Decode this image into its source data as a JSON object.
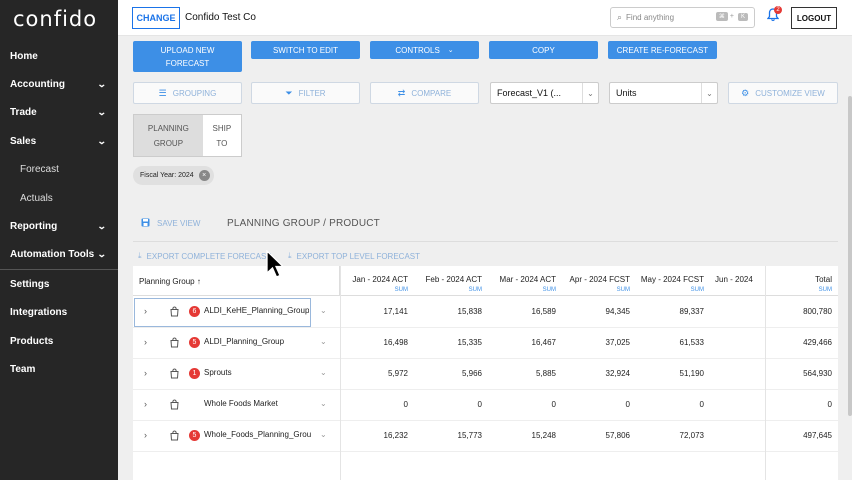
{
  "brand": {
    "logo": "confido"
  },
  "sidebar": {
    "items": [
      {
        "label": "Home",
        "chevron": false,
        "sub": false
      },
      {
        "label": "Accounting",
        "chevron": true,
        "sub": false
      },
      {
        "label": "Trade",
        "chevron": true,
        "sub": false
      },
      {
        "label": "Sales",
        "chevron": true,
        "sub": false
      },
      {
        "label": "Forecast",
        "chevron": false,
        "sub": true
      },
      {
        "label": "Actuals",
        "chevron": false,
        "sub": true
      },
      {
        "label": "Reporting",
        "chevron": true,
        "sub": false
      },
      {
        "label": "Automation Tools",
        "chevron": true,
        "sub": false
      },
      {
        "label": "Settings",
        "chevron": false,
        "sub": false
      },
      {
        "label": "Integrations",
        "chevron": false,
        "sub": false
      },
      {
        "label": "Products",
        "chevron": false,
        "sub": false
      },
      {
        "label": "Team",
        "chevron": false,
        "sub": false
      }
    ]
  },
  "header": {
    "change_label": "CHANGE",
    "company": "Confido Test Co",
    "search_placeholder": "Find anything",
    "shortcut_key1": "⌘",
    "shortcut_plus": "+",
    "shortcut_key2": "K",
    "notification_count": "2",
    "logout_label": "LOGOUT"
  },
  "toolbar": {
    "upload_line1": "UPLOAD NEW",
    "upload_line2": "FORECAST",
    "switch_edit": "SWITCH TO EDIT",
    "controls": "CONTROLS",
    "copy": "COPY",
    "create_reforecast": "CREATE RE-FORECAST",
    "grouping": "GROUPING",
    "filter": "FILTER",
    "compare": "COMPARE",
    "forecast_select": "Forecast_V1 (...",
    "units_select": "Units",
    "customize_view": "CUSTOMIZE VIEW"
  },
  "group_toggle": {
    "option1_line1": "PLANNING",
    "option1_line2": "GROUP",
    "option2_line1": "SHIP",
    "option2_line2": "TO"
  },
  "filter_chip": "Fiscal Year: 2024",
  "save_view": "SAVE VIEW",
  "breadcrumb": "PLANNING GROUP / PRODUCT",
  "export_complete": "EXPORT COMPLETE FORECAST",
  "export_top": "EXPORT TOP LEVEL FORECAST",
  "table": {
    "first_header": "Planning Group ↑",
    "columns": [
      {
        "title": "Jan - 2024 ACT",
        "sub": "SUM"
      },
      {
        "title": "Feb - 2024 ACT",
        "sub": "SUM"
      },
      {
        "title": "Mar - 2024 ACT",
        "sub": "SUM"
      },
      {
        "title": "Apr - 2024 FCST",
        "sub": "SUM"
      },
      {
        "title": "May - 2024 FCST",
        "sub": "SUM"
      },
      {
        "title": "Jun - 2024",
        "sub": ""
      },
      {
        "title": "Total",
        "sub": "SUM"
      }
    ],
    "rows": [
      {
        "name": "ALDI_KeHE_Planning_Group",
        "badge": "6",
        "values": [
          "17,141",
          "15,838",
          "16,589",
          "94,345",
          "89,337",
          "",
          "800,780"
        ]
      },
      {
        "name": "ALDI_Planning_Group",
        "badge": "5",
        "values": [
          "16,498",
          "15,335",
          "16,467",
          "37,025",
          "61,533",
          "",
          "429,466"
        ]
      },
      {
        "name": "Sprouts",
        "badge": "1",
        "values": [
          "5,972",
          "5,966",
          "5,885",
          "32,924",
          "51,190",
          "",
          "564,930"
        ]
      },
      {
        "name": "Whole Foods Market",
        "badge": "",
        "values": [
          "0",
          "0",
          "0",
          "0",
          "0",
          "",
          "0"
        ]
      },
      {
        "name": "Whole_Foods_Planning_Group",
        "badge": "5",
        "values": [
          "16,232",
          "15,773",
          "15,248",
          "57,806",
          "72,073",
          "",
          "497,645"
        ]
      }
    ]
  },
  "colors": {
    "sidebar_bg": "#262626",
    "primary": "#3d8fe6",
    "badge_red": "#e53935"
  }
}
